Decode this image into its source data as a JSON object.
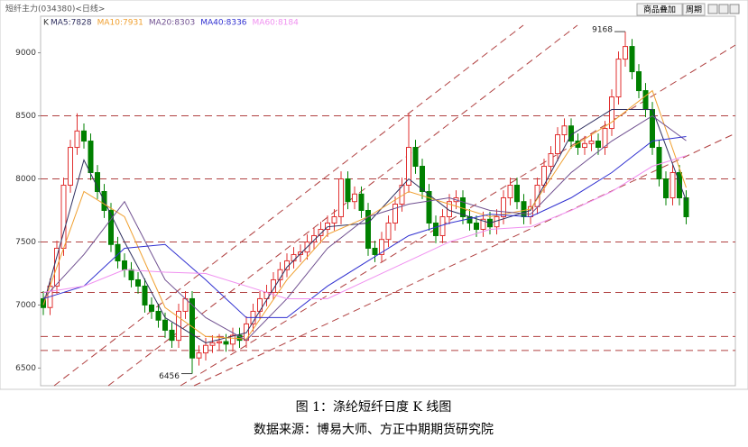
{
  "header": {
    "title": "短纤主力(034380)<日线>",
    "buttons": [
      "商品叠加",
      "周期"
    ]
  },
  "chart_data": {
    "type": "candlestick",
    "axis_label": "K",
    "open": [
      7050,
      6980,
      7150,
      7450,
      7950,
      8250,
      8380,
      8300,
      8050,
      7900,
      7750,
      7480,
      7350,
      7280,
      7200,
      7150,
      7000,
      6950,
      6880,
      6800,
      6720,
      6950,
      7050,
      6580,
      6620,
      6680,
      6700,
      6710,
      6690,
      6760,
      6720,
      6850,
      6950,
      7050,
      7100,
      7200,
      7280,
      7350,
      7400,
      7420,
      7500,
      7550,
      7600,
      7650,
      7700,
      8000,
      7820,
      7880,
      7750,
      7450,
      7400,
      7520,
      7650,
      7800,
      7950,
      8250,
      8100,
      7900,
      7650,
      7550,
      7700,
      7820,
      7850,
      7700,
      7650,
      7600,
      7680,
      7620,
      7700,
      7850,
      7950,
      7820,
      7700,
      7780,
      7950,
      8100,
      8200,
      8350,
      8420,
      8300,
      8250,
      8280,
      8300,
      8250,
      8400,
      8650,
      8950,
      9050,
      8850,
      8700,
      8550,
      8250,
      8000,
      7850,
      8050,
      7850
    ],
    "high": [
      7110,
      7210,
      7510,
      8010,
      8310,
      8520,
      8440,
      8360,
      8110,
      7960,
      7810,
      7540,
      7410,
      7340,
      7260,
      7210,
      7060,
      7010,
      6940,
      6860,
      7010,
      7110,
      7110,
      6680,
      6740,
      6760,
      6770,
      6770,
      6820,
      6820,
      6910,
      7010,
      7110,
      7160,
      7260,
      7340,
      7410,
      7460,
      7480,
      7560,
      7610,
      7660,
      7710,
      7760,
      8060,
      8060,
      7940,
      7940,
      7810,
      7510,
      7580,
      7710,
      7860,
      8010,
      8520,
      8310,
      8160,
      7960,
      7710,
      7760,
      7880,
      7910,
      7910,
      7760,
      7710,
      7740,
      7740,
      7760,
      7910,
      8010,
      8010,
      7880,
      7840,
      8010,
      8160,
      8260,
      8410,
      8480,
      8480,
      8360,
      8340,
      8360,
      8360,
      8460,
      8710,
      9010,
      9168,
      9110,
      8910,
      8760,
      8610,
      8310,
      8060,
      8110,
      8110,
      7910
    ],
    "low": [
      6920,
      6920,
      7090,
      7390,
      7890,
      8190,
      8240,
      7990,
      7840,
      7690,
      7420,
      7290,
      7220,
      7140,
      7090,
      6940,
      6890,
      6820,
      6740,
      6660,
      6660,
      6890,
      6456,
      6520,
      6560,
      6620,
      6640,
      6630,
      6630,
      6660,
      6660,
      6790,
      6890,
      6990,
      7040,
      7140,
      7220,
      7290,
      7340,
      7360,
      7440,
      7490,
      7540,
      7590,
      7640,
      7760,
      7760,
      7690,
      7390,
      7340,
      7340,
      7460,
      7590,
      7740,
      7890,
      8040,
      7840,
      7590,
      7490,
      7490,
      7640,
      7760,
      7640,
      7590,
      7540,
      7540,
      7560,
      7560,
      7640,
      7790,
      7760,
      7640,
      7640,
      7720,
      7890,
      8040,
      8140,
      8290,
      8240,
      8190,
      8190,
      8220,
      8190,
      8190,
      8340,
      8590,
      8890,
      8790,
      8640,
      8490,
      8190,
      7940,
      7790,
      7790,
      7790,
      7640
    ],
    "close": [
      6980,
      7150,
      7450,
      7950,
      8250,
      8380,
      8300,
      8050,
      7900,
      7750,
      7480,
      7350,
      7280,
      7200,
      7150,
      7000,
      6950,
      6880,
      6800,
      6720,
      6950,
      7050,
      6580,
      6620,
      6680,
      6700,
      6710,
      6690,
      6760,
      6720,
      6850,
      6950,
      7050,
      7100,
      7200,
      7280,
      7350,
      7400,
      7420,
      7500,
      7550,
      7600,
      7650,
      7700,
      8000,
      7820,
      7880,
      7750,
      7450,
      7400,
      7520,
      7650,
      7800,
      7950,
      8250,
      8100,
      7900,
      7650,
      7550,
      7700,
      7820,
      7850,
      7700,
      7650,
      7600,
      7680,
      7620,
      7700,
      7850,
      7950,
      7820,
      7700,
      7780,
      7950,
      8100,
      8200,
      8350,
      8420,
      8300,
      8250,
      8280,
      8300,
      8250,
      8400,
      8650,
      8950,
      9050,
      8850,
      8700,
      8550,
      8250,
      8000,
      7850,
      8050,
      7850,
      7700
    ],
    "up_color": "#e03030",
    "down_color": "#008000",
    "series": [
      {
        "name": "MA5:7828",
        "color": "#303060",
        "x": [
          0,
          6,
          12,
          18,
          24,
          30,
          36,
          42,
          48,
          54,
          60,
          66,
          72,
          78,
          84,
          90,
          95
        ],
        "values": [
          7000,
          8150,
          7500,
          6900,
          6700,
          6780,
          7300,
          7620,
          7650,
          8000,
          7750,
          7650,
          7750,
          8350,
          8550,
          8550,
          7828
        ]
      },
      {
        "name": "MA10:7931",
        "color": "#f0a030",
        "x": [
          0,
          6,
          12,
          18,
          24,
          30,
          36,
          42,
          48,
          54,
          60,
          66,
          72,
          78,
          84,
          90,
          95
        ],
        "values": [
          7000,
          7900,
          7700,
          6980,
          6750,
          6730,
          7200,
          7560,
          7700,
          7900,
          7800,
          7700,
          7760,
          8250,
          8450,
          8700,
          7931
        ]
      },
      {
        "name": "MA20:8303",
        "color": "#705090",
        "x": [
          0,
          6,
          12,
          18,
          24,
          30,
          36,
          42,
          48,
          54,
          60,
          66,
          72,
          78,
          84,
          90,
          95
        ],
        "values": [
          7050,
          7400,
          7820,
          7200,
          6900,
          6720,
          7050,
          7450,
          7700,
          7800,
          7850,
          7750,
          7720,
          8050,
          8300,
          8500,
          8303
        ]
      },
      {
        "name": "MA40:8336",
        "color": "#3030d0",
        "x": [
          0,
          6,
          12,
          18,
          24,
          30,
          36,
          42,
          48,
          54,
          60,
          66,
          72,
          78,
          84,
          90,
          95
        ],
        "values": [
          7050,
          7150,
          7450,
          7480,
          7200,
          6900,
          6900,
          7150,
          7350,
          7550,
          7650,
          7720,
          7700,
          7850,
          8050,
          8300,
          8336
        ]
      },
      {
        "name": "MA60:8184",
        "color": "#f090f0",
        "x": [
          0,
          6,
          12,
          18,
          24,
          30,
          36,
          42,
          48,
          54,
          60,
          66,
          72,
          78,
          84,
          90,
          95
        ],
        "values": [
          7100,
          7150,
          7280,
          7260,
          7250,
          7150,
          7050,
          7050,
          7200,
          7350,
          7500,
          7600,
          7620,
          7750,
          7900,
          8100,
          8184
        ]
      }
    ],
    "ylim": [
      6360,
      9290
    ],
    "yticks": [
      6500,
      7000,
      7500,
      8000,
      8500,
      9000
    ],
    "hlines": [
      8500,
      8000,
      7500,
      7100,
      6750,
      6640
    ],
    "annotations": [
      {
        "text": "9168",
        "index": 86,
        "value": 9168
      },
      {
        "text": "6456",
        "index": 22,
        "value": 6456
      }
    ]
  },
  "caption": {
    "title": "图 1：涤纶短纤日度 K 线图",
    "source": "数据来源：博易大师、方正中期期货研究院"
  }
}
